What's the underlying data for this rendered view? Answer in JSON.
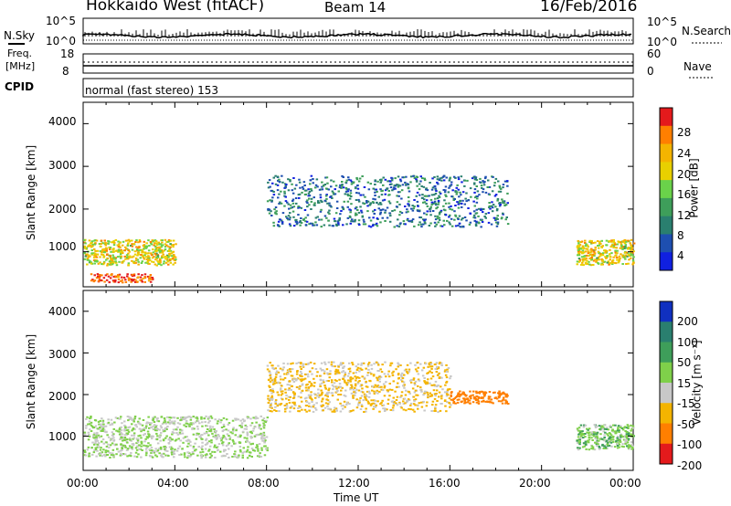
{
  "header": {
    "station": "Hokkaido West (fitACF)",
    "beam": "Beam 14",
    "date": "16/Feb/2016"
  },
  "noise_panel": {
    "label": "N.Sky",
    "right_label": "N.Search",
    "left_ticks": [
      "10^5",
      "10^0"
    ],
    "right_ticks": [
      "10^5",
      "10^0"
    ]
  },
  "freq_panel": {
    "label_line1": "Freq.",
    "label_line2": "[MHz]",
    "right_label": "Nave",
    "left_ticks": [
      "18",
      "8"
    ],
    "right_ticks": [
      "60",
      "0"
    ]
  },
  "cpid_panel": {
    "label": "CPID",
    "text": "normal (fast stereo) 153"
  },
  "power_panel": {
    "ylabel": "Slant Range [km]",
    "colorbar_label": "Power [dB]",
    "colorbar_ticks": [
      "28",
      "24",
      "20",
      "16",
      "12",
      "8",
      "4"
    ],
    "colorbar_colors": [
      "#e41a1c",
      "#ff7f00",
      "#f4b400",
      "#e8d000",
      "#6ad24a",
      "#3e9e5a",
      "#2a7f6f",
      "#1e4fb0",
      "#1020e0"
    ]
  },
  "velocity_panel": {
    "ylabel": "Slant Range [km]",
    "colorbar_label": "Velocity [m s⁻¹]",
    "colorbar_ticks": [
      "200",
      "100",
      "50",
      "15",
      "-15",
      "-50",
      "-100",
      "-200"
    ],
    "colorbar_colors": [
      "#1030c0",
      "#2a7f6f",
      "#3e9e5a",
      "#7fd04a",
      "#c8c8c8",
      "#f4b400",
      "#ff7f00",
      "#e41a1c"
    ]
  },
  "xaxis": {
    "label": "Time UT",
    "ticks": [
      "00:00",
      "04:00",
      "08:00",
      "12:00",
      "16:00",
      "20:00",
      "00:00"
    ]
  },
  "chart_data": [
    {
      "type": "heatmap",
      "title": "Power",
      "ylabel": "Slant Range [km]",
      "xlabel": "Time UT",
      "ylim": [
        180,
        4500
      ],
      "y_ticks": [
        1000,
        2000,
        3000,
        4000
      ],
      "x_range_hours": [
        0,
        24
      ],
      "colorbar_range_db": [
        0,
        32
      ],
      "features": [
        {
          "time_start_hours": 0.0,
          "time_end_hours": 4.0,
          "range_km": [
            700,
            1300
          ],
          "power_db": 20
        },
        {
          "time_start_hours": 0.3,
          "time_end_hours": 3.0,
          "range_km": [
            300,
            500
          ],
          "power_db": 30
        },
        {
          "time_start_hours": 8.0,
          "time_end_hours": 18.5,
          "range_km": [
            1600,
            2800
          ],
          "power_db": 8
        },
        {
          "time_start_hours": 21.5,
          "time_end_hours": 24.0,
          "range_km": [
            700,
            1300
          ],
          "power_db": 20
        }
      ]
    },
    {
      "type": "heatmap",
      "title": "Velocity",
      "ylabel": "Slant Range [km]",
      "xlabel": "Time UT",
      "ylim": [
        180,
        4500
      ],
      "y_ticks": [
        1000,
        2000,
        3000,
        4000
      ],
      "x_range_hours": [
        0,
        24
      ],
      "colorbar_range_ms": [
        -250,
        250
      ],
      "features": [
        {
          "time_start_hours": 0.0,
          "time_end_hours": 8.0,
          "range_km": [
            500,
            1500
          ],
          "velocity_ms": 0
        },
        {
          "time_start_hours": 8.0,
          "time_end_hours": 16.0,
          "range_km": [
            1600,
            2800
          ],
          "velocity_ms": -40
        },
        {
          "time_start_hours": 16.0,
          "time_end_hours": 18.5,
          "range_km": [
            1800,
            2100
          ],
          "velocity_ms": -120
        },
        {
          "time_start_hours": 21.5,
          "time_end_hours": 24.0,
          "range_km": [
            700,
            1300
          ],
          "velocity_ms": 20
        }
      ]
    }
  ]
}
